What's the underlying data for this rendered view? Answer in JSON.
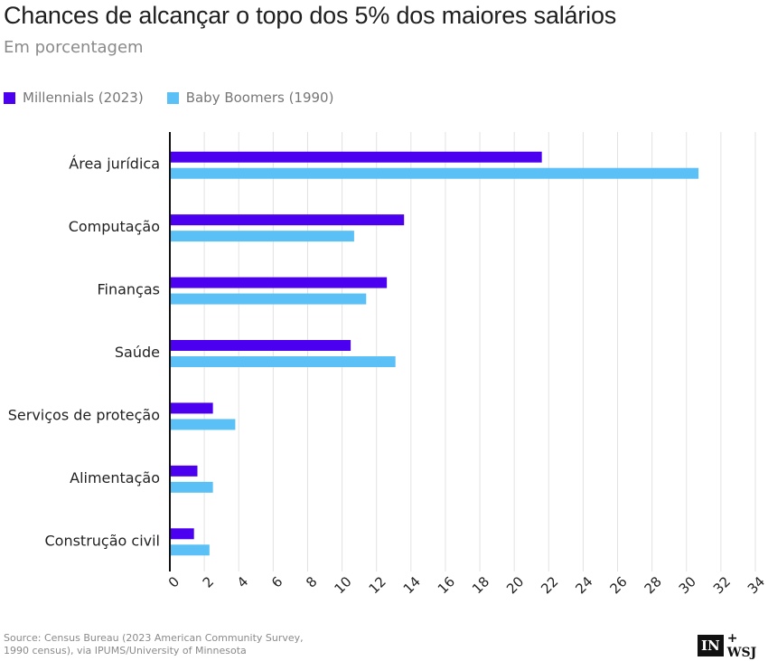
{
  "title": "Chances de alcançar o topo dos 5% dos maiores salários",
  "subtitle": "Em porcentagem",
  "legend": [
    {
      "label": "Millennials (2023)",
      "color": "#4b00f0"
    },
    {
      "label": "Baby Boomers (1990)",
      "color": "#5bc0f5"
    }
  ],
  "source": "Source: Census Bureau (2023 American Community Survey, 1990 census), via IPUMS/University of Minnesota",
  "logo": {
    "box": "IN",
    "text": "+ WSJ"
  },
  "chart_data": {
    "type": "bar",
    "orientation": "horizontal",
    "title": "Chances de alcançar o topo dos 5% dos maiores salários",
    "subtitle": "Em porcentagem",
    "categories": [
      "Área jurídica",
      "Computação",
      "Finanças",
      "Saúde",
      "Serviços de proteção",
      "Alimentação",
      "Construção civil"
    ],
    "series": [
      {
        "name": "Millennials (2023)",
        "color": "#4b00f0",
        "values": [
          21.6,
          13.6,
          12.6,
          10.5,
          2.5,
          1.6,
          1.4
        ]
      },
      {
        "name": "Baby Boomers (1990)",
        "color": "#5bc0f5",
        "values": [
          30.7,
          10.7,
          11.4,
          13.1,
          3.8,
          2.5,
          2.3
        ]
      }
    ],
    "xlim": [
      0,
      34
    ],
    "xticks": [
      "0",
      "2",
      "4",
      "6",
      "8",
      "10",
      "12",
      "14",
      "16",
      "18",
      "20",
      "22",
      "24",
      "26",
      "28",
      "30",
      "32",
      "34"
    ],
    "grid": true,
    "legend_position": "top-left"
  }
}
